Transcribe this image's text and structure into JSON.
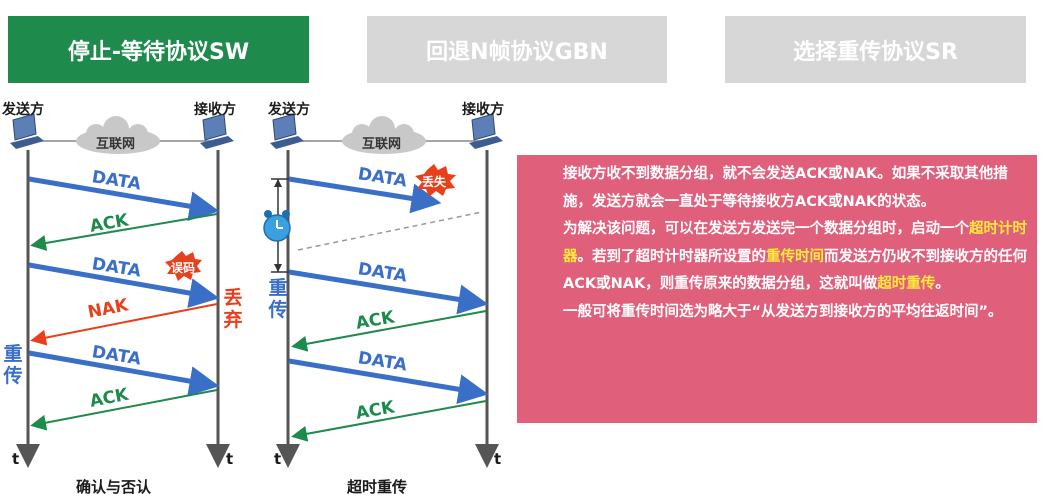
{
  "tabs": [
    {
      "label": "停止-等待协议SW",
      "active": true
    },
    {
      "label": "回退N帧协议GBN",
      "active": false
    },
    {
      "label": "选择重传协议SR",
      "active": false
    }
  ],
  "colors": {
    "active_tab": "#1e8a4c",
    "inactive_tab": "#d7d7d7",
    "data_arrow": "#3a6fc8",
    "ack_arrow": "#1e8a4c",
    "nak_arrow": "#e8401c",
    "info_box": "#e0607c",
    "highlight": "#ffeb3b"
  },
  "left_diagram": {
    "sender": "发送方",
    "receiver": "接收方",
    "cloud": "互联网",
    "messages": [
      "DATA",
      "ACK",
      "DATA",
      "NAK",
      "DATA",
      "ACK"
    ],
    "error_burst": "误码",
    "discard": "丢弃",
    "retransmit": "重传",
    "time_left": "t",
    "time_right": "t",
    "caption": "确认与否认"
  },
  "right_diagram": {
    "sender": "发送方",
    "receiver": "接收方",
    "cloud": "互联网",
    "messages": [
      "DATA",
      "DATA",
      "ACK",
      "DATA",
      "ACK"
    ],
    "lost_burst": "丢失",
    "retransmit": "重传",
    "timer_icon": "alarm-clock-icon",
    "time_left": "t",
    "time_right": "t",
    "caption": "超时重传"
  },
  "info": {
    "p1": "接收方收不到数据分组，就不会发送ACK或NAK。如果不采取其他措施，发送方就会一直处于等待接收方ACK或NAK的状态。",
    "p2_a": "为解决该问题，可以在发送方发送完一个数据分组时，启动一个",
    "p2_hl1": "超时计时器",
    "p2_b": "。若到了超时计时器所设置的",
    "p2_hl2": "重传时间",
    "p2_c": "而发送方仍收不到接收方的任何ACK或NAK，则重传原来的数据分组，这就叫做",
    "p2_hl3": "超时重传",
    "p2_d": "。",
    "p3": "一般可将重传时间选为略大于“从发送方到接收方的平均往返时间”。"
  }
}
